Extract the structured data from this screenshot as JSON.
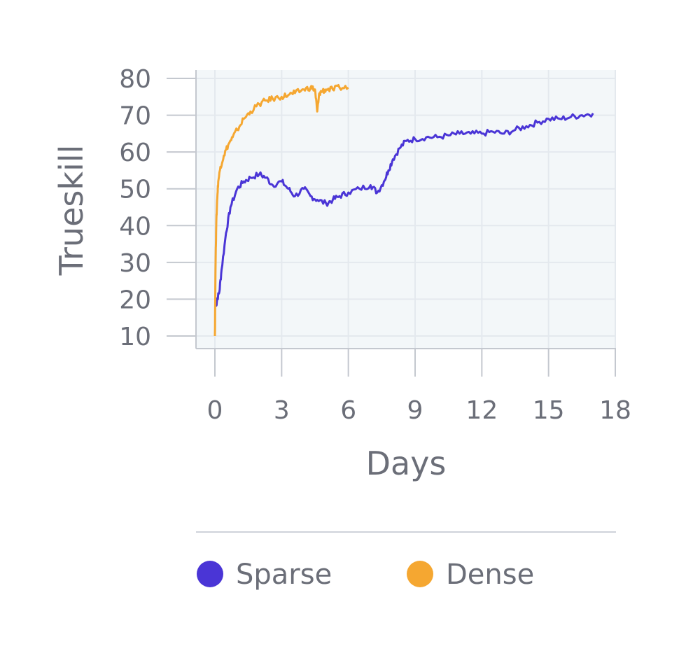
{
  "chart_data": {
    "type": "line",
    "title": "",
    "xlabel": "Days",
    "ylabel": "Trueskill",
    "xlim": [
      0,
      18
    ],
    "ylim": [
      10,
      80
    ],
    "xticks": [
      0,
      3,
      6,
      9,
      12,
      15,
      18
    ],
    "yticks": [
      10,
      20,
      30,
      40,
      50,
      60,
      70,
      80
    ],
    "grid": true,
    "legend_position": "bottom",
    "series": [
      {
        "name": "Sparse",
        "color": "#4a35d6",
        "x": [
          0.05,
          0.1,
          0.2,
          0.3,
          0.5,
          0.7,
          1.0,
          1.3,
          1.6,
          2.0,
          2.3,
          2.6,
          3.0,
          3.3,
          3.6,
          4.0,
          4.3,
          4.6,
          5.0,
          5.3,
          5.6,
          6.0,
          6.5,
          7.0,
          7.3,
          7.6,
          7.8,
          8.0,
          8.3,
          8.6,
          9.0,
          9.5,
          10.0,
          10.5,
          11.0,
          11.5,
          12.0,
          12.5,
          13.0,
          13.5,
          14.0,
          14.5,
          15.0,
          15.5,
          16.0,
          16.5,
          17.0
        ],
        "values": [
          18,
          20,
          22,
          28,
          38,
          45,
          50,
          52,
          53,
          54,
          53,
          51,
          52,
          50,
          48,
          50,
          48,
          47,
          46,
          47,
          48,
          49,
          50,
          51,
          49,
          52,
          55,
          58,
          61,
          63,
          63.5,
          64,
          64,
          64.5,
          65,
          65,
          65,
          65.5,
          65,
          66,
          67,
          68,
          69,
          69,
          69.5,
          70,
          70.5
        ]
      },
      {
        "name": "Dense",
        "color": "#f5a731",
        "x": [
          0.0,
          0.03,
          0.06,
          0.1,
          0.15,
          0.25,
          0.4,
          0.6,
          0.8,
          1.0,
          1.3,
          1.6,
          2.0,
          2.3,
          2.6,
          3.0,
          3.3,
          3.6,
          4.0,
          4.3,
          4.5,
          4.6,
          4.7,
          4.8,
          5.0,
          5.3,
          5.6,
          6.0
        ],
        "values": [
          10,
          30,
          40,
          47,
          52,
          56,
          59,
          62,
          64,
          66,
          69,
          71,
          73,
          74,
          74.5,
          75,
          75.5,
          76,
          77,
          77.5,
          77,
          71,
          76,
          76.5,
          77,
          77,
          77.5,
          77.5
        ]
      }
    ]
  }
}
